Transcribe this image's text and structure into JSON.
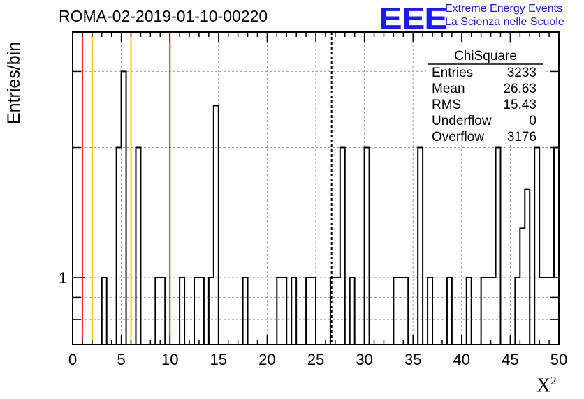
{
  "title": "ROMA-02-2019-01-10-00220",
  "logo": {
    "mark": "EEE",
    "line1": "Extreme Energy Events",
    "line2": "La Scienza nelle Scuole"
  },
  "colors": {
    "red": "#e0201b",
    "yellow": "#f5c000",
    "blue": "#1a1aff"
  },
  "stats": {
    "name": "ChiSquare",
    "rows": [
      {
        "label": "Entries",
        "value": "3233"
      },
      {
        "label": "Mean",
        "value": "26.63"
      },
      {
        "label": "RMS",
        "value": "15.43"
      },
      {
        "label": "Underflow",
        "value": "0"
      },
      {
        "label": "Overflow",
        "value": "3176"
      }
    ]
  },
  "chart_data": {
    "type": "bar",
    "title": "ROMA-02-2019-01-10-00220",
    "xlabel": "X",
    "xlabel_sup": "2",
    "ylabel": "Entries/bin",
    "xlim": [
      0,
      50
    ],
    "ylim": [
      0.7,
      3.7
    ],
    "yscale": "log",
    "ytick_labels": [
      "1"
    ],
    "xtick_labels": [
      "0",
      "5",
      "10",
      "15",
      "20",
      "25",
      "30",
      "35",
      "40",
      "45",
      "50"
    ],
    "grid": true,
    "bin_width": 0.5,
    "bins": [
      {
        "x": 3.0,
        "y": 1
      },
      {
        "x": 4.5,
        "y": 2
      },
      {
        "x": 5.0,
        "y": 3
      },
      {
        "x": 6.5,
        "y": 2
      },
      {
        "x": 8.5,
        "y": 1
      },
      {
        "x": 9.0,
        "y": 1
      },
      {
        "x": 11.0,
        "y": 1
      },
      {
        "x": 12.5,
        "y": 1
      },
      {
        "x": 13.0,
        "y": 1
      },
      {
        "x": 14.0,
        "y": 1
      },
      {
        "x": 14.5,
        "y": 2.5
      },
      {
        "x": 17.5,
        "y": 1
      },
      {
        "x": 21.0,
        "y": 1
      },
      {
        "x": 21.5,
        "y": 1
      },
      {
        "x": 22.5,
        "y": 1
      },
      {
        "x": 24.0,
        "y": 1
      },
      {
        "x": 24.5,
        "y": 1
      },
      {
        "x": 26.5,
        "y": 1
      },
      {
        "x": 27.0,
        "y": 1
      },
      {
        "x": 27.5,
        "y": 2
      },
      {
        "x": 28.5,
        "y": 1
      },
      {
        "x": 30.0,
        "y": 2
      },
      {
        "x": 33.0,
        "y": 1
      },
      {
        "x": 33.5,
        "y": 1
      },
      {
        "x": 34.0,
        "y": 1
      },
      {
        "x": 35.5,
        "y": 2
      },
      {
        "x": 36.5,
        "y": 1
      },
      {
        "x": 38.5,
        "y": 1
      },
      {
        "x": 40.5,
        "y": 1
      },
      {
        "x": 42.0,
        "y": 1
      },
      {
        "x": 42.5,
        "y": 1
      },
      {
        "x": 43.0,
        "y": 1
      },
      {
        "x": 43.5,
        "y": 2
      },
      {
        "x": 45.5,
        "y": 1
      },
      {
        "x": 46.0,
        "y": 1.3
      },
      {
        "x": 46.5,
        "y": 1.6
      },
      {
        "x": 47.5,
        "y": 2
      },
      {
        "x": 48.0,
        "y": 1
      },
      {
        "x": 48.5,
        "y": 1
      },
      {
        "x": 49.0,
        "y": 1
      },
      {
        "x": 49.5,
        "y": 2
      }
    ],
    "vlines": [
      {
        "x": 1,
        "color": "red",
        "style": "solid"
      },
      {
        "x": 2,
        "color": "yellow",
        "style": "solid"
      },
      {
        "x": 6,
        "color": "yellow",
        "style": "solid"
      },
      {
        "x": 10,
        "color": "red",
        "style": "solid"
      },
      {
        "x": 26.63,
        "color": "black",
        "style": "dashed"
      }
    ]
  }
}
